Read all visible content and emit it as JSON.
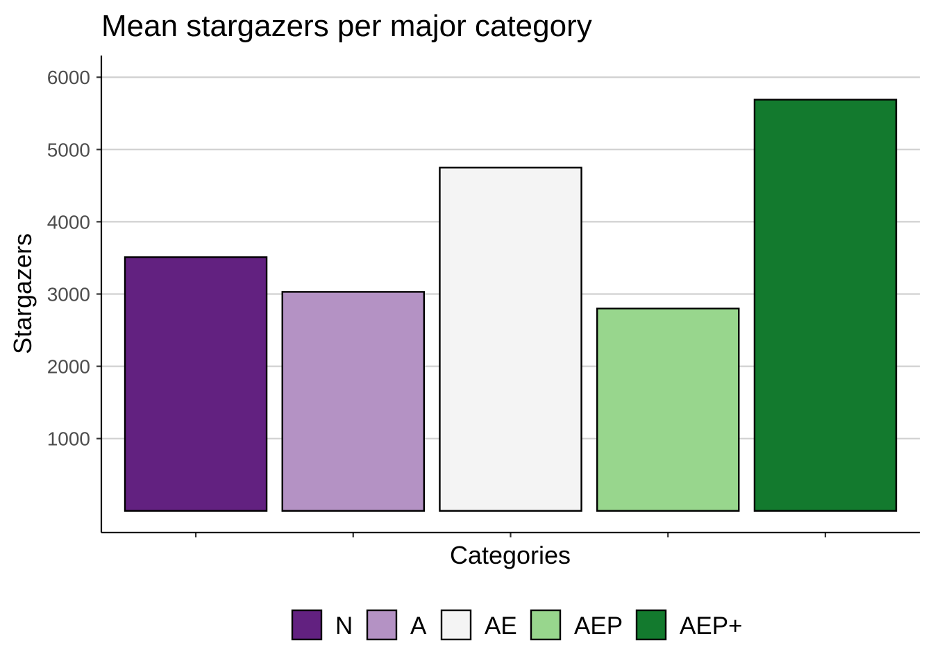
{
  "chart_data": {
    "type": "bar",
    "title": "Mean stargazers per major category",
    "xlabel": "Categories",
    "ylabel": "Stargazers",
    "categories": [
      "N",
      "A",
      "AE",
      "AEP",
      "AEP+"
    ],
    "values": [
      3510,
      3030,
      4750,
      2800,
      5690
    ],
    "colors": [
      "#622180",
      "#b492c4",
      "#f4f4f4",
      "#98d68d",
      "#137a2e"
    ],
    "ylim": [
      -300,
      6300
    ],
    "yticks": [
      1000,
      2000,
      3000,
      4000,
      5000,
      6000
    ],
    "grid": "horizontal",
    "show_x_tick_labels": false,
    "legend": {
      "position": "bottom",
      "entries": [
        "N",
        "A",
        "AE",
        "AEP",
        "AEP+"
      ]
    }
  }
}
